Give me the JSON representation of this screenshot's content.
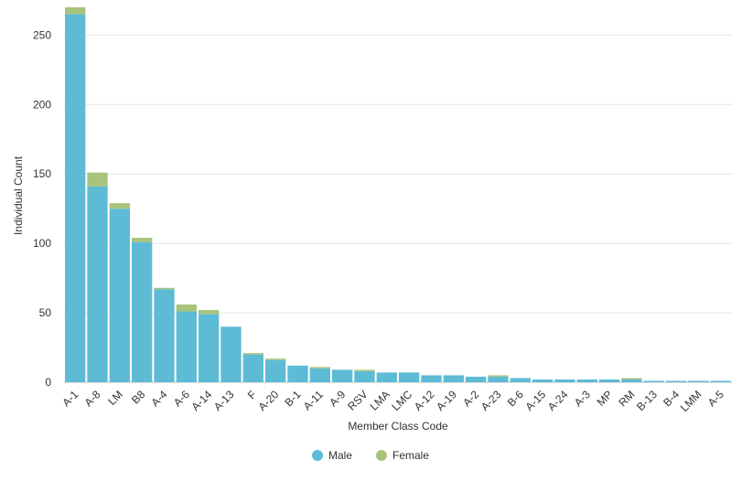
{
  "chart_data": {
    "type": "bar",
    "stacked": true,
    "xlabel": "Member Class Code",
    "ylabel": "Individual Count",
    "ylim": [
      0,
      270
    ],
    "yticks": [
      0,
      50,
      100,
      150,
      200,
      250
    ],
    "grid": true,
    "legend_position": "bottom-center",
    "categories": [
      "A-1",
      "A-8",
      "LM",
      "B8",
      "A-4",
      "A-6",
      "A-14",
      "A-13",
      "F",
      "A-20",
      "B-1",
      "A-11",
      "A-9",
      "RSV",
      "LMA",
      "LMC",
      "A-12",
      "A-19",
      "A-2",
      "A-23",
      "B-6",
      "A-15",
      "A-24",
      "A-3",
      "MP",
      "RM",
      "B-13",
      "B-4",
      "LMM",
      "A-5"
    ],
    "series": [
      {
        "name": "Male",
        "color": "#5ebbd6",
        "values": [
          265,
          141,
          125,
          101,
          67,
          51,
          49,
          40,
          20,
          16,
          12,
          10,
          9,
          8,
          7,
          7,
          5,
          5,
          4,
          4,
          3,
          2,
          2,
          2,
          2,
          2,
          1,
          1,
          1,
          1
        ]
      },
      {
        "name": "Female",
        "color": "#a8c47c",
        "values": [
          5,
          10,
          4,
          3,
          1,
          5,
          3,
          0,
          1,
          1,
          0,
          1,
          0,
          1,
          0,
          0,
          0,
          0,
          0,
          1,
          0,
          0,
          0,
          0,
          0,
          1,
          0,
          0,
          0,
          0
        ]
      }
    ]
  }
}
